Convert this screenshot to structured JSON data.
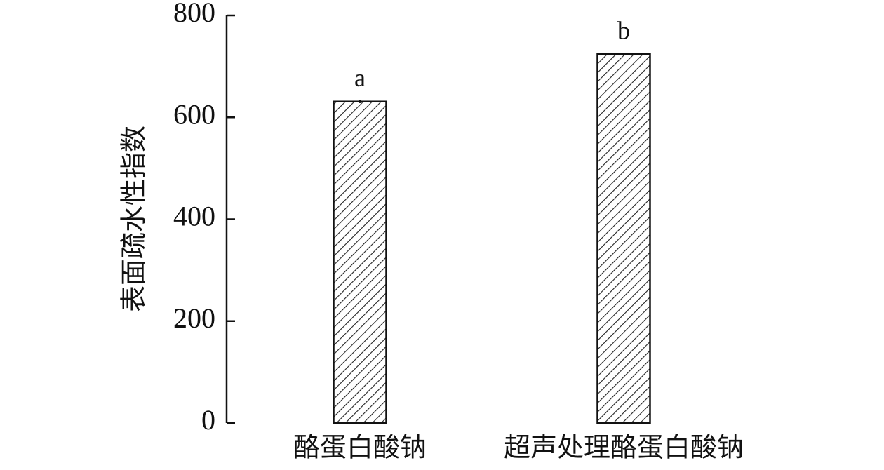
{
  "chart_data": {
    "type": "bar",
    "y_label": "表面疏水性指数",
    "categories": [
      "酪蛋白酸钠",
      "超声处理酪蛋白酸钠"
    ],
    "values": [
      631,
      724
    ],
    "errors": [
      3,
      3
    ],
    "annotations": [
      "a",
      "b"
    ],
    "color": "#222222",
    "ylim": [
      0,
      800
    ],
    "yticks": [
      0,
      200,
      400,
      600,
      800
    ]
  }
}
